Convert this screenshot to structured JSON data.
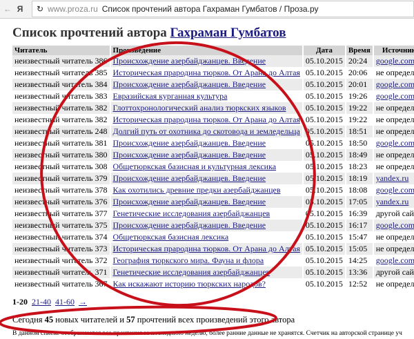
{
  "browser": {
    "back_icon": "arrow-left-icon",
    "logo": "Я",
    "reload_icon": "reload-icon",
    "domain": "www.proza.ru",
    "title": "Список прочтений автора Гахраман Гумбатов / Проза.ру"
  },
  "page": {
    "title_prefix": "Список прочтений автора",
    "author": "Гахраман Гумбатов"
  },
  "table": {
    "headers": [
      "Читатель",
      "Произведение",
      "Дата",
      "Время",
      "Источник"
    ],
    "rows": [
      [
        "неизвестный читатель 386",
        "Происхождение азербайджанцев. Введение",
        "05.10.2015",
        "20:24",
        "google.com"
      ],
      [
        "неизвестный читатель 385",
        "Историческая прародина тюрков. От Арана до Алтая",
        "05.10.2015",
        "20:06",
        "не определен"
      ],
      [
        "неизвестный читатель 384",
        "Происхождение азербайджанцев. Введение",
        "05.10.2015",
        "20:01",
        "google.com"
      ],
      [
        "неизвестный читатель 383",
        "Евразийская курганная культура",
        "05.10.2015",
        "19:26",
        "google.com"
      ],
      [
        "неизвестный читатель 382",
        "Глоттохронологический анализ тюркских языков",
        "05.10.2015",
        "19:22",
        "не определен"
      ],
      [
        "неизвестный читатель 382",
        "Историческая прародина тюрков. От Арана до Алтая",
        "05.10.2015",
        "19:22",
        "не определен"
      ],
      [
        "неизвестный читатель 248",
        "Долгий путь от охотника до скотовода и земледельца",
        "05.10.2015",
        "18:51",
        "не определен"
      ],
      [
        "неизвестный читатель 381",
        "Происхождение азербайджанцев. Введение",
        "05.10.2015",
        "18:50",
        "google.com"
      ],
      [
        "неизвестный читатель 380",
        "Происхождение азербайджанцев. Введение",
        "05.10.2015",
        "18:49",
        "не определен"
      ],
      [
        "неизвестный читатель 308",
        "Общетюркская базисная и культурная лексика",
        "05.10.2015",
        "18:23",
        "не определен"
      ],
      [
        "неизвестный читатель 379",
        "Происхождение азербайджанцев. Введение",
        "05.10.2015",
        "18:19",
        "yandex.ru"
      ],
      [
        "неизвестный читатель 378",
        "Как охотились древние предки азербайджанцев",
        "05.10.2015",
        "18:08",
        "google.com"
      ],
      [
        "неизвестный читатель 376",
        "Происхождение азербайджанцев. Введение",
        "05.10.2015",
        "17:05",
        "yandex.ru"
      ],
      [
        "неизвестный читатель 377",
        "Генетические исследования азербайджанцев",
        "05.10.2015",
        "16:39",
        "другой сайт"
      ],
      [
        "неизвестный читатель 375",
        "Происхождение азербайджанцев. Введение",
        "05.10.2015",
        "16:17",
        "google.com"
      ],
      [
        "неизвестный читатель 374",
        "Общетюркская базисная лексика",
        "05.10.2015",
        "15:47",
        "не определен"
      ],
      [
        "неизвестный читатель 373",
        "Историческая прародина тюрков. От Арана до Алтая",
        "05.10.2015",
        "15:05",
        "не определен"
      ],
      [
        "неизвестный читатель 372",
        "География тюркского мира. Фауна и флора",
        "05.10.2015",
        "14:25",
        "google.com"
      ],
      [
        "неизвестный читатель 371",
        "Генетические исследования азербайджанцев",
        "05.10.2015",
        "13:36",
        "другой сайт"
      ],
      [
        "неизвестный читатель 367",
        "Как искажают историю тюркских народов?",
        "05.10.2015",
        "12:52",
        "не определен"
      ]
    ]
  },
  "pagination": {
    "current": "1-20",
    "links": [
      "21-40",
      "41-60",
      "→"
    ]
  },
  "summary": {
    "before": "Сегодня",
    "readers": "45",
    "middle": "новых читателей и",
    "reads": "57",
    "after": "прочтений всех произведений этого автора"
  },
  "footer": "В данном списке отображаются все прочтения за последнюю неделю, более ранние данные не хранятся. Счетчик на авторской странице уч",
  "colors": {
    "annotation": "#c8101a",
    "link": "#1a1a80"
  }
}
